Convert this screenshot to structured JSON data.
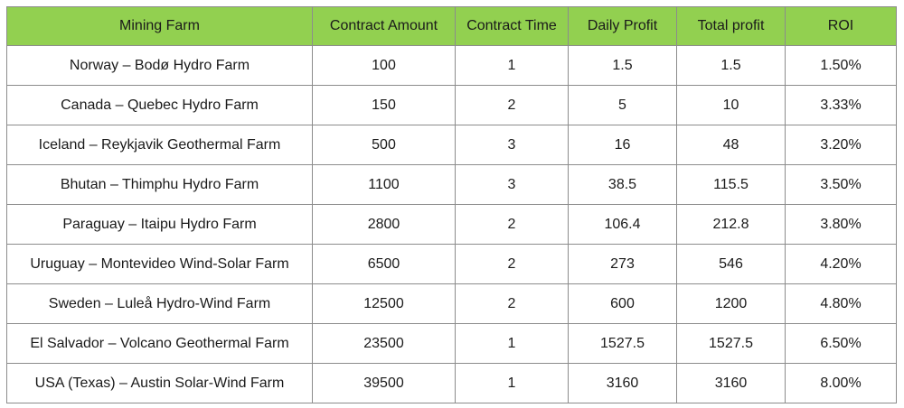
{
  "table": {
    "header": [
      "Mining Farm",
      "Contract Amount",
      "Contract Time",
      "Daily Profit",
      "Total profit",
      "ROI"
    ],
    "rows": [
      [
        "Norway – Bodø Hydro Farm",
        "100",
        "1",
        "1.5",
        "1.5",
        "1.50%"
      ],
      [
        "Canada – Quebec Hydro Farm",
        "150",
        "2",
        "5",
        "10",
        "3.33%"
      ],
      [
        "Iceland – Reykjavik Geothermal Farm",
        "500",
        "3",
        "16",
        "48",
        "3.20%"
      ],
      [
        "Bhutan – Thimphu Hydro Farm",
        "1100",
        "3",
        "38.5",
        "115.5",
        "3.50%"
      ],
      [
        "Paraguay – Itaipu Hydro Farm",
        "2800",
        "2",
        "106.4",
        "212.8",
        "3.80%"
      ],
      [
        "Uruguay – Montevideo Wind-Solar Farm",
        "6500",
        "2",
        "273",
        "546",
        "4.20%"
      ],
      [
        "Sweden – Luleå Hydro-Wind Farm",
        "12500",
        "2",
        "600",
        "1200",
        "4.80%"
      ],
      [
        "El Salvador – Volcano Geothermal Farm",
        "23500",
        "1",
        "1527.5",
        "1527.5",
        "6.50%"
      ],
      [
        "USA (Texas) – Austin Solar-Wind Farm",
        "39500",
        "1",
        "3160",
        "3160",
        "8.00%"
      ]
    ]
  }
}
